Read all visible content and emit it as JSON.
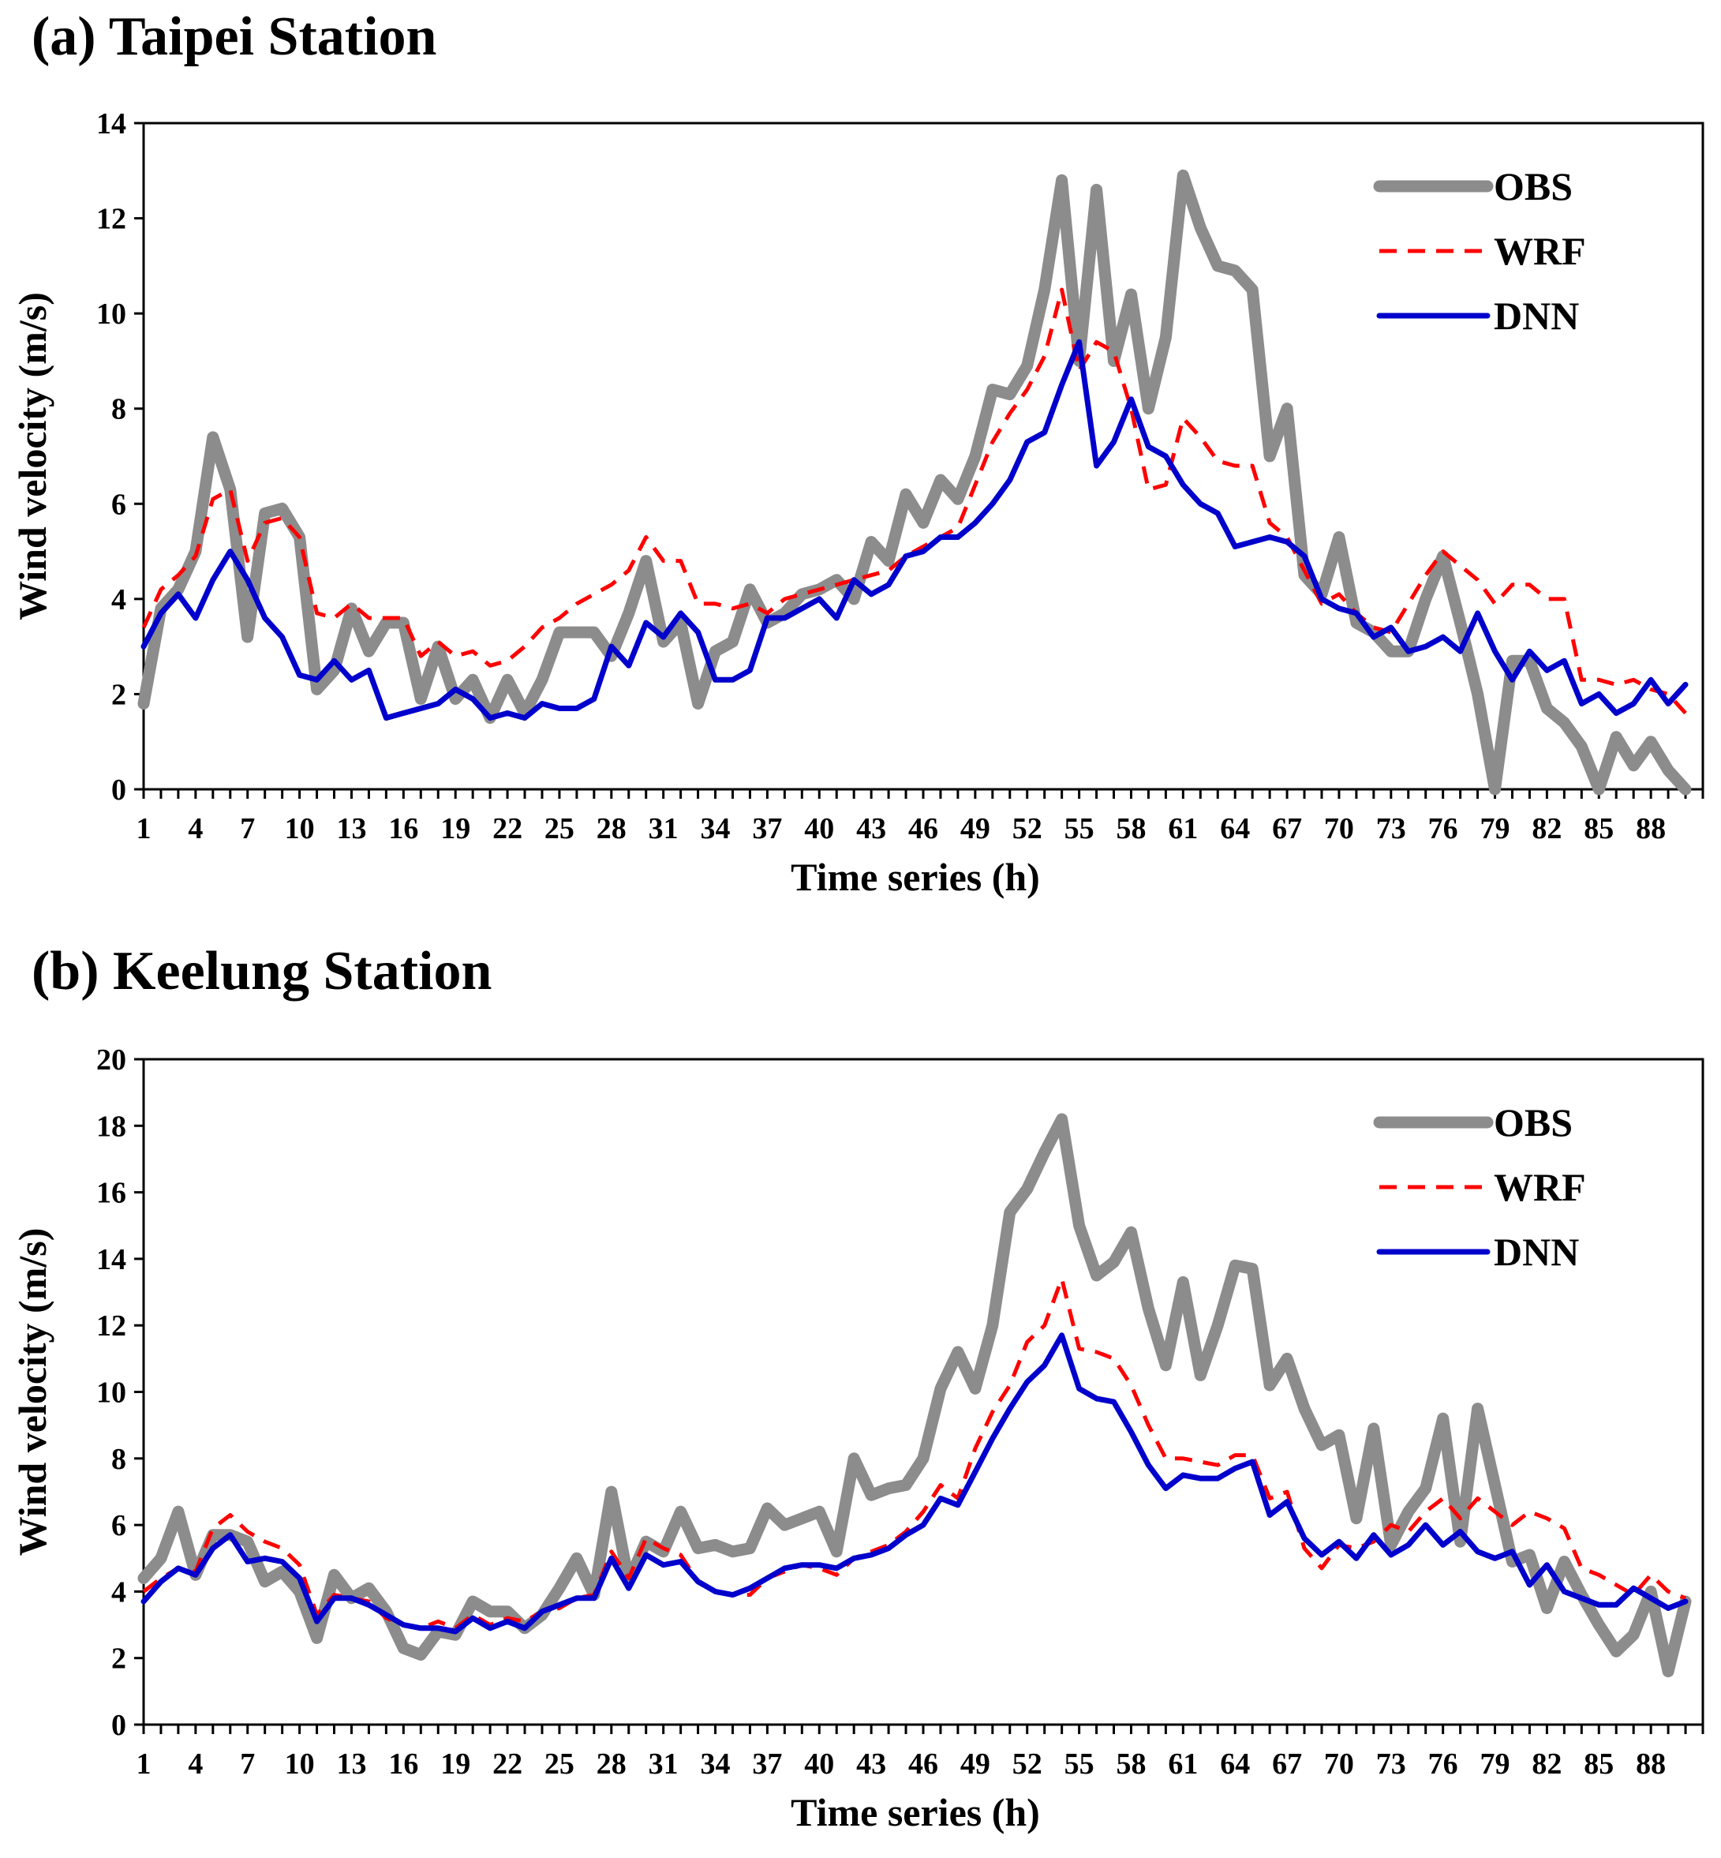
{
  "chart_data": [
    {
      "type": "line",
      "title": "(a) Taipei Station",
      "xlabel": "Time series (h)",
      "ylabel": "Wind velocity (m/s)",
      "ylim": [
        0,
        14
      ],
      "yticks": [
        0,
        2,
        4,
        6,
        8,
        10,
        12,
        14
      ],
      "xlim": [
        1,
        91
      ],
      "xticks": [
        1,
        4,
        7,
        10,
        13,
        16,
        19,
        22,
        25,
        28,
        31,
        34,
        37,
        40,
        43,
        46,
        49,
        52,
        55,
        58,
        61,
        64,
        67,
        70,
        73,
        76,
        79,
        82,
        85,
        88
      ],
      "legend_position": "top-right",
      "series": [
        {
          "name": "OBS",
          "color": "#8c8c8c",
          "style": "solid-thick",
          "values": [
            1.8,
            3.8,
            4.2,
            5.0,
            7.4,
            6.3,
            3.2,
            5.8,
            5.9,
            5.3,
            2.1,
            2.5,
            3.8,
            2.9,
            3.5,
            3.5,
            1.9,
            3.0,
            1.9,
            2.3,
            1.5,
            2.3,
            1.6,
            2.3,
            3.3,
            3.3,
            3.3,
            2.8,
            3.7,
            4.8,
            3.1,
            3.5,
            1.8,
            2.9,
            3.1,
            4.2,
            3.5,
            3.7,
            4.1,
            4.2,
            4.4,
            4.0,
            5.2,
            4.8,
            6.2,
            5.6,
            6.5,
            6.1,
            7.0,
            8.4,
            8.3,
            8.9,
            10.5,
            12.8,
            9.0,
            12.6,
            9.0,
            10.4,
            8.0,
            9.5,
            12.9,
            11.8,
            11.0,
            10.9,
            10.5,
            7.0,
            8.0,
            4.5,
            4.1,
            5.3,
            3.5,
            3.3,
            2.9,
            2.9,
            4.0,
            4.9,
            3.5,
            2.0,
            0.0,
            2.7,
            2.7,
            1.7,
            1.4,
            0.9,
            0.0,
            1.1,
            0.5,
            1.0,
            0.4,
            0.0
          ]
        },
        {
          "name": "WRF",
          "color": "#ff0000",
          "style": "dashed",
          "values": [
            3.4,
            4.2,
            4.5,
            4.9,
            6.1,
            6.3,
            4.8,
            5.6,
            5.7,
            5.3,
            3.7,
            3.6,
            3.9,
            3.6,
            3.6,
            3.6,
            2.8,
            3.1,
            2.8,
            2.9,
            2.6,
            2.7,
            3.0,
            3.4,
            3.6,
            3.9,
            4.1,
            4.3,
            4.6,
            5.3,
            4.8,
            4.8,
            3.9,
            3.9,
            3.8,
            3.9,
            3.7,
            4.0,
            4.1,
            4.2,
            4.3,
            4.4,
            4.5,
            4.6,
            4.9,
            5.1,
            5.3,
            5.5,
            6.4,
            7.3,
            7.9,
            8.4,
            9.1,
            10.5,
            8.8,
            9.4,
            9.2,
            8.0,
            6.3,
            6.4,
            7.8,
            7.4,
            6.9,
            6.8,
            6.8,
            5.6,
            5.3,
            4.6,
            3.9,
            4.1,
            3.7,
            3.4,
            3.3,
            3.9,
            4.5,
            5.0,
            4.7,
            4.4,
            3.9,
            4.3,
            4.3,
            4.0,
            4.0,
            2.3,
            2.3,
            2.2,
            2.3,
            2.1,
            2.0,
            1.6
          ]
        },
        {
          "name": "DNN",
          "color": "#0000cc",
          "style": "solid",
          "values": [
            3.0,
            3.7,
            4.1,
            3.6,
            4.4,
            5.0,
            4.4,
            3.6,
            3.2,
            2.4,
            2.3,
            2.7,
            2.3,
            2.5,
            1.5,
            1.6,
            1.7,
            1.8,
            2.1,
            1.9,
            1.5,
            1.6,
            1.5,
            1.8,
            1.7,
            1.7,
            1.9,
            3.0,
            2.6,
            3.5,
            3.2,
            3.7,
            3.3,
            2.3,
            2.3,
            2.5,
            3.6,
            3.6,
            3.8,
            4.0,
            3.6,
            4.4,
            4.1,
            4.3,
            4.9,
            5.0,
            5.3,
            5.3,
            5.6,
            6.0,
            6.5,
            7.3,
            7.5,
            8.5,
            9.4,
            6.8,
            7.3,
            8.2,
            7.2,
            7.0,
            6.4,
            6.0,
            5.8,
            5.1,
            5.2,
            5.3,
            5.2,
            4.9,
            4.0,
            3.8,
            3.7,
            3.2,
            3.4,
            2.9,
            3.0,
            3.2,
            2.9,
            3.7,
            2.9,
            2.3,
            2.9,
            2.5,
            2.7,
            1.8,
            2.0,
            1.6,
            1.8,
            2.3,
            1.8,
            2.2
          ]
        }
      ]
    },
    {
      "type": "line",
      "title": "(b) Keelung Station",
      "xlabel": "Time series (h)",
      "ylabel": "Wind velocity (m/s)",
      "ylim": [
        0,
        20
      ],
      "yticks": [
        0,
        2,
        4,
        6,
        8,
        10,
        12,
        14,
        16,
        18,
        20
      ],
      "xlim": [
        1,
        91
      ],
      "xticks": [
        1,
        4,
        7,
        10,
        13,
        16,
        19,
        22,
        25,
        28,
        31,
        34,
        37,
        40,
        43,
        46,
        49,
        52,
        55,
        58,
        61,
        64,
        67,
        70,
        73,
        76,
        79,
        82,
        85,
        88
      ],
      "legend_position": "top-right",
      "series": [
        {
          "name": "OBS",
          "color": "#8c8c8c",
          "style": "solid-thick",
          "values": [
            4.4,
            5.0,
            6.4,
            4.5,
            5.7,
            5.7,
            5.5,
            4.3,
            4.6,
            4.0,
            2.6,
            4.5,
            3.8,
            4.1,
            3.4,
            2.3,
            2.1,
            2.8,
            2.7,
            3.7,
            3.4,
            3.4,
            2.9,
            3.3,
            4.1,
            5.0,
            3.9,
            7.0,
            4.3,
            5.5,
            5.2,
            6.4,
            5.3,
            5.4,
            5.2,
            5.3,
            6.5,
            6.0,
            6.2,
            6.4,
            5.2,
            8.0,
            6.9,
            7.1,
            7.2,
            8.0,
            10.1,
            11.2,
            10.1,
            12.0,
            15.4,
            16.1,
            17.2,
            18.2,
            15.0,
            13.5,
            13.9,
            14.8,
            12.5,
            10.8,
            13.3,
            10.5,
            12.0,
            13.8,
            13.7,
            10.2,
            11.0,
            9.5,
            8.4,
            8.7,
            6.2,
            8.9,
            5.4,
            6.4,
            7.1,
            9.2,
            5.5,
            9.5,
            7.2,
            4.9,
            5.1,
            3.5,
            4.9,
            3.9,
            3.0,
            2.2,
            2.7,
            4.0,
            1.6,
            3.7
          ]
        },
        {
          "name": "WRF",
          "color": "#ff0000",
          "style": "dashed",
          "values": [
            4.0,
            4.4,
            4.7,
            4.6,
            5.9,
            6.3,
            5.8,
            5.5,
            5.3,
            4.8,
            3.3,
            3.9,
            3.8,
            3.7,
            3.2,
            3.0,
            2.9,
            3.1,
            2.9,
            3.3,
            3.0,
            3.2,
            3.1,
            3.4,
            3.5,
            3.8,
            3.9,
            5.2,
            4.4,
            5.6,
            5.3,
            5.1,
            4.3,
            4.0,
            3.9,
            3.9,
            4.4,
            4.6,
            4.8,
            4.7,
            4.5,
            5.0,
            5.2,
            5.4,
            5.8,
            6.4,
            7.2,
            6.8,
            8.3,
            9.4,
            10.2,
            11.5,
            12.0,
            13.4,
            11.3,
            11.2,
            11.0,
            10.2,
            9.0,
            8.0,
            8.0,
            7.9,
            7.8,
            8.1,
            8.1,
            6.8,
            7.0,
            5.3,
            4.7,
            5.4,
            5.3,
            5.5,
            6.0,
            5.8,
            6.4,
            6.8,
            6.2,
            6.8,
            6.4,
            6.0,
            6.4,
            6.2,
            5.9,
            4.7,
            4.5,
            4.2,
            3.9,
            4.5,
            4.0,
            3.8
          ]
        },
        {
          "name": "DNN",
          "color": "#0000cc",
          "style": "solid",
          "values": [
            3.7,
            4.3,
            4.7,
            4.5,
            5.3,
            5.7,
            4.9,
            5.0,
            4.9,
            4.4,
            3.1,
            3.8,
            3.8,
            3.6,
            3.3,
            3.0,
            2.9,
            2.9,
            2.8,
            3.2,
            2.9,
            3.1,
            2.9,
            3.4,
            3.6,
            3.8,
            3.8,
            5.0,
            4.1,
            5.1,
            4.8,
            4.9,
            4.3,
            4.0,
            3.9,
            4.1,
            4.4,
            4.7,
            4.8,
            4.8,
            4.7,
            5.0,
            5.1,
            5.3,
            5.7,
            6.0,
            6.8,
            6.6,
            7.6,
            8.6,
            9.5,
            10.3,
            10.8,
            11.7,
            10.1,
            9.8,
            9.7,
            8.8,
            7.8,
            7.1,
            7.5,
            7.4,
            7.4,
            7.7,
            7.9,
            6.3,
            6.7,
            5.6,
            5.1,
            5.5,
            5.0,
            5.7,
            5.1,
            5.4,
            6.0,
            5.4,
            5.8,
            5.2,
            5.0,
            5.2,
            4.2,
            4.8,
            4.0,
            3.8,
            3.6,
            3.6,
            4.1,
            3.8,
            3.5,
            3.7
          ]
        }
      ]
    }
  ]
}
